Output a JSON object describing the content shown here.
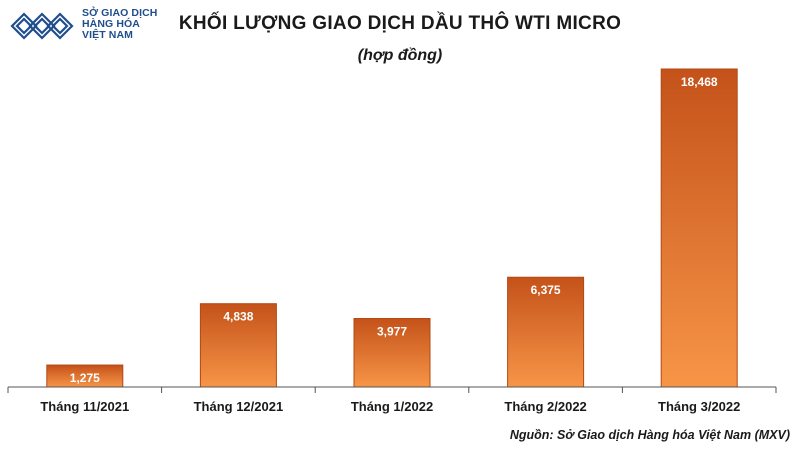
{
  "logo": {
    "lines": [
      "SỞ GIAO DỊCH",
      "HÀNG HÓA",
      "VIỆT NAM"
    ],
    "icon": "diamond-chain-logo-icon",
    "color": "#1f4e8c"
  },
  "source": "Nguồn: Sở Giao dịch Hàng hóa Việt Nam (MXV)",
  "colors": {
    "bar_top": "#c4521a",
    "bar_bottom": "#f79547",
    "bar_stroke": "#b24a12",
    "axis": "#555555",
    "value_text": "#ffffff"
  },
  "chart_data": {
    "type": "bar",
    "title": "KHỐI LƯỢNG GIAO DỊCH DẦU THÔ WTI MICRO",
    "subtitle": "(hợp đồng)",
    "categories": [
      "Tháng 11/2021",
      "Tháng 12/2021",
      "Tháng 1/2022",
      "Tháng 2/2022",
      "Tháng 3/2022"
    ],
    "values": [
      1275,
      4838,
      3977,
      6375,
      18468
    ],
    "value_labels": [
      "1,275",
      "4,838",
      "3,977",
      "6,375",
      "18,468"
    ],
    "xlabel": "",
    "ylabel": "",
    "ylim": [
      0,
      18468
    ],
    "grid": false,
    "legend": "none"
  }
}
